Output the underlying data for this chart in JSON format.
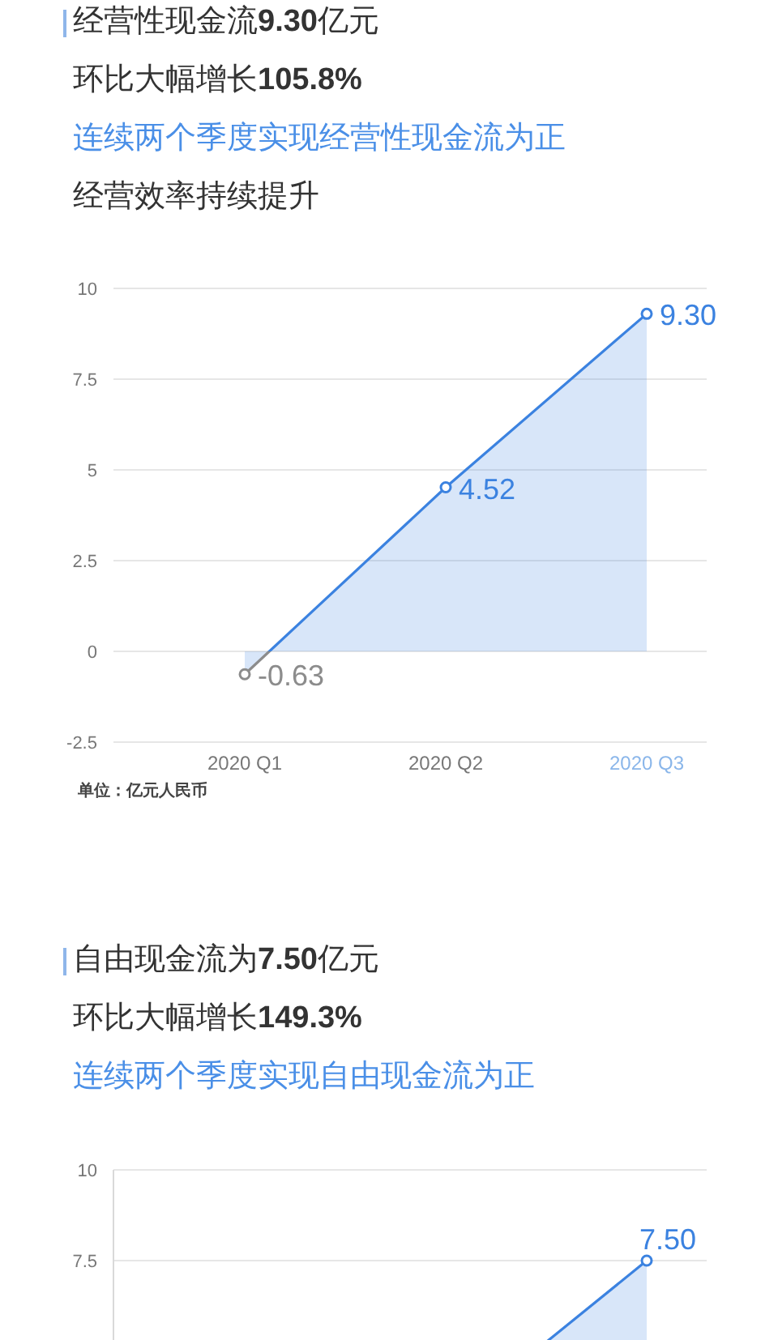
{
  "chart_data": [
    {
      "type": "area",
      "title": "经营性现金流9.30亿元",
      "subtitle": "环比大幅增长105.8%",
      "annotations": [
        "连续两个季度实现经营性现金流为正",
        "经营效率持续提升"
      ],
      "ylabel": "单位：亿元人民币",
      "categories": [
        "2020 Q1",
        "2020 Q2",
        "2020 Q3"
      ],
      "series": [
        {
          "color": "#3b82e0",
          "colors": [
            "#8c8c8c",
            "#3b82e0",
            "#3b82e0"
          ],
          "values": [
            -0.63,
            4.52,
            9.3
          ],
          "value_labels": [
            "-0.63",
            "4.52",
            "9.30"
          ]
        }
      ],
      "ylim": [
        -2.5,
        10
      ],
      "yticks": [
        -2.5,
        0,
        2.5,
        5,
        7.5,
        10
      ],
      "grid": "y",
      "marker": "circle"
    },
    {
      "type": "area",
      "title": "自由现金流为7.50亿元",
      "subtitle": "环比大幅增长149.3%",
      "annotations": [
        "连续两个季度实现自由现金流为正"
      ],
      "categories": [
        null,
        null,
        null
      ],
      "series": [
        {
          "color": "#3b82e0",
          "values": [
            null,
            3.01,
            7.5
          ],
          "value_labels": [
            null,
            null,
            "7.50"
          ]
        }
      ],
      "ylim": [
        -2.5,
        10
      ],
      "yticks": [
        7.5,
        10
      ],
      "grid": "y",
      "marker": "circle",
      "tick_labels": "y"
    }
  ]
}
